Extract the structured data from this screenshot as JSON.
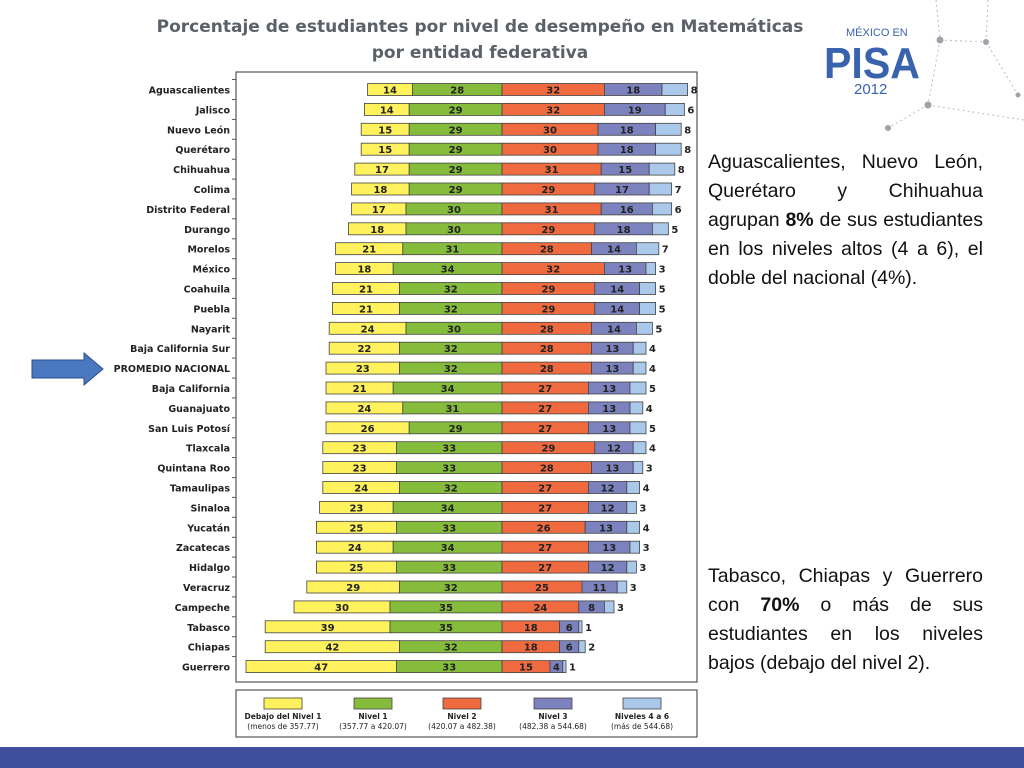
{
  "title_line1": "Porcentaje de estudiantes por nivel de desempeño en Matemáticas",
  "title_line2": "por entidad federativa",
  "logo": {
    "line1": "MÉXICO EN",
    "line2": "PISA",
    "line3": "2012"
  },
  "note1": {
    "pre": "Aguascalientes, Nuevo León, Querétaro y Chihuahua agrupan ",
    "bold": "8%",
    "post": " de sus estudiantes en los niveles altos (4 a 6), el doble del nacional (4%)."
  },
  "note2": {
    "pre": "Tabasco, Chiapas y Guerrero con ",
    "bold": "70%",
    "post": " o más de sus estudiantes en los niveles bajos (debajo del nivel 2)."
  },
  "colors": {
    "below1": "#fff25c",
    "n1": "#86bc3c",
    "n2": "#f06a40",
    "n3": "#7c82be",
    "n46": "#a9c8ea",
    "arrow": "#4a78c0",
    "bottom_bar": "#3f4f9e",
    "logo": "#3a63ad"
  },
  "chart_data": {
    "type": "bar",
    "orientation": "horizontal",
    "stacked": true,
    "unit": "%",
    "highlight": "PROMEDIO NACIONAL",
    "categories": [
      "Aguascalientes",
      "Jalisco",
      "Nuevo León",
      "Querétaro",
      "Chihuahua",
      "Colima",
      "Distrito Federal",
      "Durango",
      "Morelos",
      "México",
      "Coahuila",
      "Puebla",
      "Nayarit",
      "Baja California Sur",
      "PROMEDIO NACIONAL",
      "Baja California",
      "Guanajuato",
      "San Luis Potosí",
      "Tlaxcala",
      "Quintana Roo",
      "Tamaulipas",
      "Sinaloa",
      "Yucatán",
      "Zacatecas",
      "Hidalgo",
      "Veracruz",
      "Campeche",
      "Tabasco",
      "Chiapas",
      "Guerrero"
    ],
    "series": [
      {
        "name": "Debajo del Nivel 1",
        "range": "(menos de 357.77)",
        "values": [
          14,
          14,
          15,
          15,
          17,
          18,
          17,
          18,
          21,
          18,
          21,
          21,
          24,
          22,
          23,
          21,
          24,
          26,
          23,
          23,
          24,
          23,
          25,
          24,
          25,
          29,
          30,
          39,
          42,
          47
        ]
      },
      {
        "name": "Nivel 1",
        "range": "(357.77 a 420.07)",
        "values": [
          28,
          29,
          29,
          29,
          29,
          29,
          30,
          30,
          31,
          34,
          32,
          32,
          30,
          32,
          32,
          34,
          31,
          29,
          33,
          33,
          32,
          34,
          33,
          34,
          33,
          32,
          35,
          35,
          32,
          33
        ]
      },
      {
        "name": "Nivel 2",
        "range": "(420.07 a 482.38)",
        "values": [
          32,
          32,
          30,
          30,
          31,
          29,
          31,
          29,
          28,
          32,
          29,
          29,
          28,
          28,
          28,
          27,
          27,
          27,
          29,
          28,
          27,
          27,
          26,
          27,
          27,
          25,
          24,
          18,
          18,
          15
        ]
      },
      {
        "name": "Nivel 3",
        "range": "(482.38 a 544.68)",
        "values": [
          18,
          19,
          18,
          18,
          15,
          17,
          16,
          18,
          14,
          13,
          14,
          14,
          14,
          13,
          13,
          13,
          13,
          13,
          12,
          13,
          12,
          12,
          13,
          13,
          12,
          11,
          8,
          6,
          6,
          4
        ]
      },
      {
        "name": "Niveles 4 a 6",
        "range": "(más de 544.68)",
        "values": [
          8,
          6,
          8,
          8,
          8,
          7,
          6,
          5,
          7,
          3,
          5,
          5,
          5,
          4,
          4,
          5,
          4,
          5,
          4,
          3,
          4,
          3,
          4,
          3,
          3,
          3,
          3,
          1,
          2,
          1
        ]
      }
    ]
  }
}
